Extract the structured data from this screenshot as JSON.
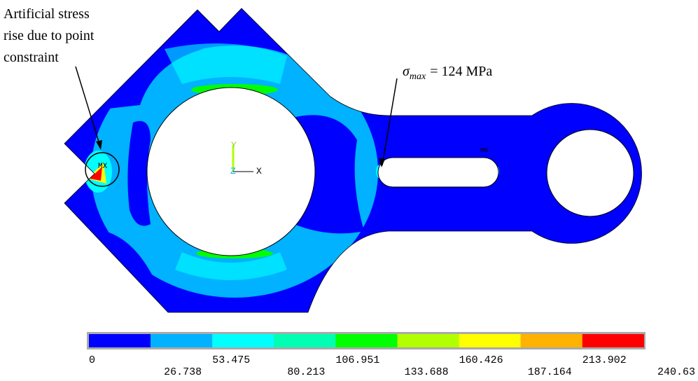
{
  "annotation_left": {
    "lines": [
      "Artificial stress",
      "rise due to point",
      "constraint"
    ]
  },
  "annotation_right": {
    "symbol": "σ",
    "subscript": "max",
    "text": "= 124 MPa"
  },
  "markers": {
    "max": "MX",
    "min": "MN"
  },
  "triad": {
    "y": "Y",
    "z": "Z",
    "x": "X"
  },
  "legend": {
    "colors": [
      "#0000ff",
      "#00b2ff",
      "#00ffff",
      "#00ffb2",
      "#00ff00",
      "#b2ff00",
      "#ffff00",
      "#ffb200",
      "#ff0000"
    ],
    "labels": [
      "0",
      "26.738",
      "53.475",
      "80.213",
      "106.951",
      "133.688",
      "160.426",
      "187.164",
      "213.902",
      "240.63"
    ]
  }
}
